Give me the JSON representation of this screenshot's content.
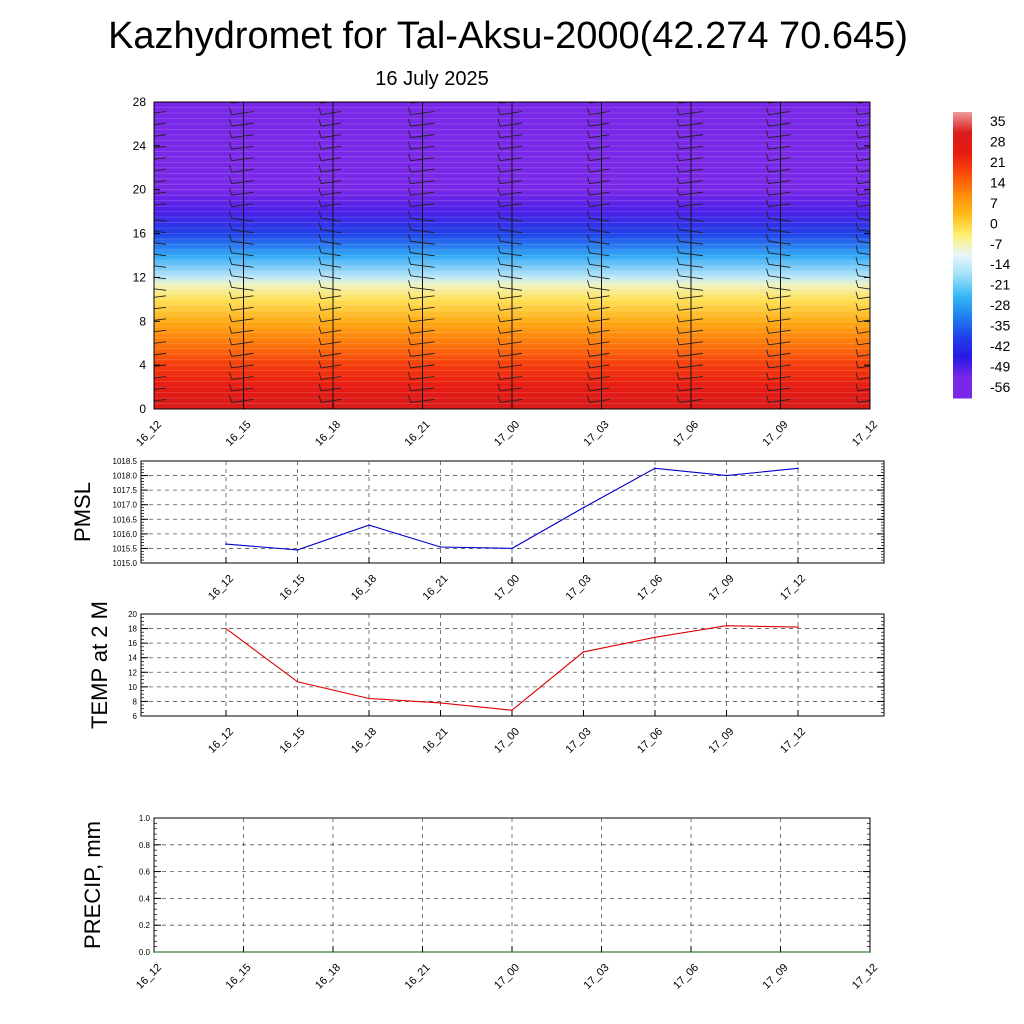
{
  "header": {
    "title": "Kazhydromet for Tal-Aksu-2000(42.274 70.645)",
    "date": "16 July 2025"
  },
  "chart_data": [
    {
      "type": "heatmap",
      "name": "vertical-temperature-wind-cross-section",
      "x": [
        "16_12",
        "16_15",
        "16_18",
        "16_21",
        "17_00",
        "17_03",
        "17_06",
        "17_09",
        "17_12"
      ],
      "y_ticks": [
        0,
        4,
        8,
        12,
        16,
        20,
        24,
        28
      ],
      "ylim": [
        0,
        28
      ],
      "legend_position": "right",
      "colorbar_levels": [
        35,
        28,
        21,
        14,
        7,
        0,
        -7,
        -14,
        -21,
        -28,
        -35,
        -42,
        -49,
        -56
      ],
      "colorbar_colors": [
        "#ef9a9a",
        "#d81c1c",
        "#e81a10",
        "#fa4a0c",
        "#fe8a08",
        "#feba1a",
        "#fef070",
        "#e8f6fa",
        "#9ee0f8",
        "#36b8f6",
        "#2080f0",
        "#2040e8",
        "#2818e6",
        "#7a28e8"
      ],
      "temperature_profile": [
        {
          "height": 0,
          "value": 28
        },
        {
          "height": 2,
          "value": 22
        },
        {
          "height": 4,
          "value": 16
        },
        {
          "height": 6,
          "value": 9
        },
        {
          "height": 8,
          "value": 2
        },
        {
          "height": 10,
          "value": -5
        },
        {
          "height": 11.3,
          "value": -11
        },
        {
          "height": 12,
          "value": -18
        },
        {
          "height": 14,
          "value": -30
        },
        {
          "height": 16,
          "value": -42
        },
        {
          "height": 18,
          "value": -52
        },
        {
          "height": 20,
          "value": -58
        },
        {
          "height": 22,
          "value": -58
        },
        {
          "height": 24,
          "value": -56
        },
        {
          "height": 28,
          "value": -56
        }
      ],
      "wind_barbs": "shown"
    },
    {
      "type": "line",
      "ylabel": "PMSL",
      "x": [
        "16_12",
        "16_15",
        "16_18",
        "16_21",
        "17_00",
        "17_03",
        "17_06",
        "17_09",
        "17_12"
      ],
      "series": [
        {
          "values": [
            1015.65,
            1015.45,
            1016.3,
            1015.55,
            1015.5,
            1016.9,
            1018.25,
            1018.0,
            1018.25
          ],
          "color": "#0000cc"
        }
      ],
      "ylim": [
        1015.0,
        1018.5
      ],
      "y_ticks": [
        "1015.0",
        "1015.5",
        "1016.0",
        "1016.5",
        "1017.0",
        "1017.5",
        "1018.0",
        "1018.5"
      ],
      "grid": true
    },
    {
      "type": "line",
      "ylabel": "TEMP at 2 M",
      "x": [
        "16_12",
        "16_15",
        "16_18",
        "16_21",
        "17_00",
        "17_03",
        "17_06",
        "17_09",
        "17_12"
      ],
      "series": [
        {
          "values": [
            18.0,
            10.7,
            8.4,
            7.8,
            6.8,
            14.8,
            16.8,
            18.4,
            18.2
          ],
          "color": "#dd0000"
        }
      ],
      "ylim": [
        6,
        20
      ],
      "y_ticks": [
        "6",
        "8",
        "10",
        "12",
        "14",
        "16",
        "18",
        "20"
      ],
      "grid": true
    },
    {
      "type": "line",
      "ylabel": "PRECIP, mm",
      "x": [
        "16_12",
        "16_15",
        "16_18",
        "16_21",
        "17_00",
        "17_03",
        "17_06",
        "17_09",
        "17_12"
      ],
      "series": [
        {
          "values": [
            0,
            0,
            0,
            0,
            0,
            0,
            0,
            0,
            0
          ],
          "color": "#006400"
        }
      ],
      "ylim": [
        0,
        1.0
      ],
      "y_ticks": [
        "0.0",
        "0.2",
        "0.4",
        "0.6",
        "0.8",
        "1.0"
      ],
      "grid": true
    }
  ]
}
